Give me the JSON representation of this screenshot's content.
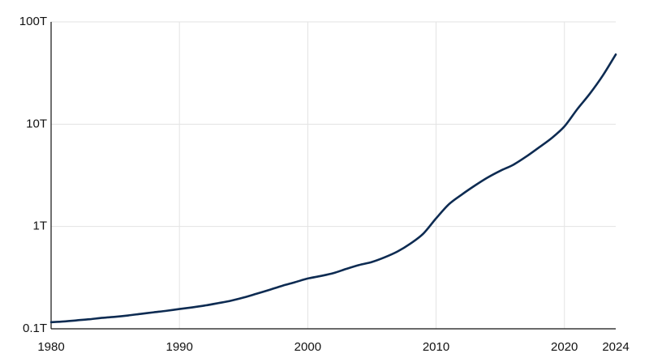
{
  "chart_data": {
    "type": "line",
    "title": "",
    "xlabel": "",
    "ylabel": "",
    "yscale": "log",
    "xlim": [
      1980,
      2024
    ],
    "ylim": [
      0.1,
      100
    ],
    "grid": true,
    "x_ticks": [
      {
        "value": 1980,
        "label": "1980"
      },
      {
        "value": 1990,
        "label": "1990"
      },
      {
        "value": 2000,
        "label": "2000"
      },
      {
        "value": 2010,
        "label": "2010"
      },
      {
        "value": 2020,
        "label": "2020"
      },
      {
        "value": 2024,
        "label": "2024"
      }
    ],
    "y_ticks": [
      {
        "value": 0.1,
        "label": "0.1T"
      },
      {
        "value": 1,
        "label": "1T"
      },
      {
        "value": 10,
        "label": "10T"
      },
      {
        "value": 100,
        "label": "100T"
      }
    ],
    "line_color": "#0d2b52",
    "series": [
      {
        "x": [
          1980,
          1981,
          1982,
          1983,
          1984,
          1985,
          1986,
          1987,
          1988,
          1989,
          1990,
          1991,
          1992,
          1993,
          1994,
          1995,
          1996,
          1997,
          1998,
          1999,
          2000,
          2001,
          2002,
          2003,
          2004,
          2005,
          2006,
          2007,
          2008,
          2009,
          2010,
          2011,
          2012,
          2013,
          2014,
          2015,
          2016,
          2017,
          2018,
          2019,
          2020,
          2021,
          2022,
          2023,
          2024
        ],
        "y": [
          0.116,
          0.118,
          0.121,
          0.124,
          0.128,
          0.131,
          0.135,
          0.14,
          0.145,
          0.15,
          0.156,
          0.162,
          0.169,
          0.178,
          0.188,
          0.202,
          0.22,
          0.24,
          0.263,
          0.285,
          0.31,
          0.328,
          0.35,
          0.385,
          0.42,
          0.45,
          0.5,
          0.57,
          0.68,
          0.85,
          1.2,
          1.65,
          2.05,
          2.5,
          3.0,
          3.5,
          4.0,
          4.8,
          5.9,
          7.3,
          9.5,
          14.0,
          20.0,
          30.0,
          48.0
        ]
      }
    ]
  }
}
